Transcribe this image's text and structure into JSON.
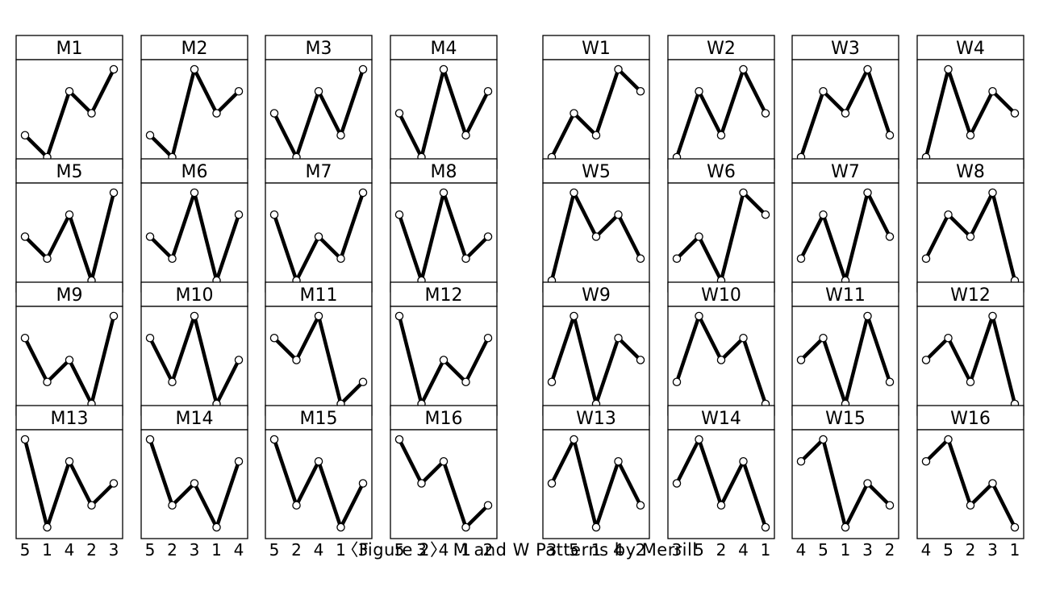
{
  "caption": "〈Figure 2〉 M and W Patterns by Merrill",
  "rank_scale": [
    1,
    2,
    3,
    4,
    5
  ],
  "patterns": [
    {
      "name": "M1",
      "sequence": [
        2,
        1,
        4,
        3,
        5
      ]
    },
    {
      "name": "M2",
      "sequence": [
        2,
        1,
        5,
        3,
        4
      ]
    },
    {
      "name": "M3",
      "sequence": [
        3,
        1,
        4,
        2,
        5
      ]
    },
    {
      "name": "M4",
      "sequence": [
        3,
        1,
        5,
        2,
        4
      ]
    },
    {
      "name": "W1",
      "sequence": [
        1,
        3,
        2,
        5,
        4
      ]
    },
    {
      "name": "W2",
      "sequence": [
        1,
        4,
        2,
        5,
        3
      ]
    },
    {
      "name": "W3",
      "sequence": [
        1,
        4,
        3,
        5,
        2
      ]
    },
    {
      "name": "W4",
      "sequence": [
        1,
        5,
        2,
        4,
        3
      ]
    },
    {
      "name": "M5",
      "sequence": [
        3,
        2,
        4,
        1,
        5
      ]
    },
    {
      "name": "M6",
      "sequence": [
        3,
        2,
        5,
        1,
        4
      ]
    },
    {
      "name": "M7",
      "sequence": [
        4,
        1,
        3,
        2,
        5
      ]
    },
    {
      "name": "M8",
      "sequence": [
        4,
        1,
        5,
        2,
        3
      ]
    },
    {
      "name": "W5",
      "sequence": [
        1,
        5,
        3,
        4,
        2
      ]
    },
    {
      "name": "W6",
      "sequence": [
        2,
        3,
        1,
        5,
        4
      ]
    },
    {
      "name": "W7",
      "sequence": [
        2,
        4,
        1,
        5,
        3
      ]
    },
    {
      "name": "W8",
      "sequence": [
        2,
        4,
        3,
        5,
        1
      ]
    },
    {
      "name": "M9",
      "sequence": [
        4,
        2,
        3,
        1,
        5
      ]
    },
    {
      "name": "M10",
      "sequence": [
        4,
        2,
        5,
        1,
        3
      ]
    },
    {
      "name": "M11",
      "sequence": [
        4,
        3,
        5,
        1,
        2
      ]
    },
    {
      "name": "M12",
      "sequence": [
        5,
        1,
        3,
        2,
        4
      ]
    },
    {
      "name": "W9",
      "sequence": [
        2,
        5,
        1,
        4,
        3
      ]
    },
    {
      "name": "W10",
      "sequence": [
        2,
        5,
        3,
        4,
        1
      ]
    },
    {
      "name": "W11",
      "sequence": [
        3,
        4,
        1,
        5,
        2
      ]
    },
    {
      "name": "W12",
      "sequence": [
        3,
        4,
        2,
        5,
        1
      ]
    },
    {
      "name": "M13",
      "sequence": [
        5,
        1,
        4,
        2,
        3
      ]
    },
    {
      "name": "M14",
      "sequence": [
        5,
        2,
        3,
        1,
        4
      ]
    },
    {
      "name": "M15",
      "sequence": [
        5,
        2,
        4,
        1,
        3
      ]
    },
    {
      "name": "M16",
      "sequence": [
        5,
        3,
        4,
        1,
        2
      ]
    },
    {
      "name": "W13",
      "sequence": [
        3,
        5,
        1,
        4,
        2
      ]
    },
    {
      "name": "W14",
      "sequence": [
        3,
        5,
        2,
        4,
        1
      ]
    },
    {
      "name": "W15",
      "sequence": [
        4,
        5,
        1,
        3,
        2
      ]
    },
    {
      "name": "W16",
      "sequence": [
        4,
        5,
        2,
        3,
        1
      ]
    }
  ]
}
